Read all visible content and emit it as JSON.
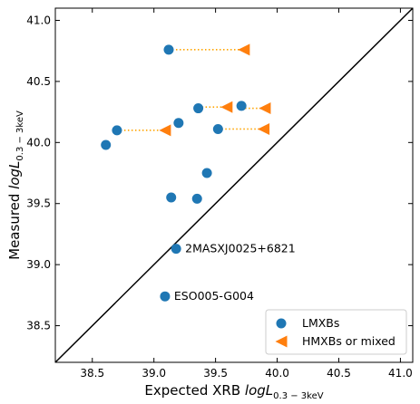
{
  "chart_data": {
    "type": "scatter",
    "xlabel_main": "Expected XRB ",
    "xlabel_italic": "logL",
    "xlabel_sub": "0.3 − 3keV",
    "ylabel_main": "Measured ",
    "ylabel_italic": "logL",
    "ylabel_sub": "0.3 − 3keV",
    "xlim": [
      38.2,
      41.1
    ],
    "ylim": [
      38.2,
      41.1
    ],
    "x_ticks": [
      38.5,
      39.0,
      39.5,
      40.0,
      40.5,
      41.0
    ],
    "y_ticks": [
      38.5,
      39.0,
      39.5,
      40.0,
      40.5,
      41.0
    ],
    "x_tick_labels": [
      "38.5",
      "39.0",
      "39.5",
      "40.0",
      "40.5",
      "41.0"
    ],
    "y_tick_labels": [
      "38.5",
      "39.0",
      "39.5",
      "40.0",
      "40.5",
      "41.0"
    ],
    "one_to_one_line": true,
    "grid": false,
    "legend_position": "bottom-right",
    "series": [
      {
        "name": "LMXBs",
        "marker": "circle",
        "color": "#1f77b4",
        "points": [
          {
            "x": 39.12,
            "y": 40.76
          },
          {
            "x": 39.71,
            "y": 40.3
          },
          {
            "x": 39.36,
            "y": 40.28
          },
          {
            "x": 39.2,
            "y": 40.16
          },
          {
            "x": 39.52,
            "y": 40.11
          },
          {
            "x": 38.7,
            "y": 40.1
          },
          {
            "x": 38.61,
            "y": 39.98
          },
          {
            "x": 39.43,
            "y": 39.75
          },
          {
            "x": 39.14,
            "y": 39.55
          },
          {
            "x": 39.35,
            "y": 39.54
          },
          {
            "x": 39.18,
            "y": 39.13
          },
          {
            "x": 39.09,
            "y": 38.74
          }
        ]
      },
      {
        "name": "HMXBs or mixed",
        "marker": "triangle-left",
        "color": "#ff7f0e",
        "points": [
          {
            "x": 39.73,
            "y": 40.76
          },
          {
            "x": 39.59,
            "y": 40.29
          },
          {
            "x": 39.9,
            "y": 40.28
          },
          {
            "x": 39.09,
            "y": 40.1
          },
          {
            "x": 39.89,
            "y": 40.11
          }
        ]
      }
    ],
    "connectors": [
      {
        "x1": 39.12,
        "x2": 39.73,
        "y": 40.76
      },
      {
        "x1": 39.36,
        "x2": 39.59,
        "y": 40.29
      },
      {
        "x1": 39.71,
        "x2": 39.9,
        "y": 40.28
      },
      {
        "x1": 38.7,
        "x2": 39.09,
        "y": 40.1
      },
      {
        "x1": 39.52,
        "x2": 39.89,
        "y": 40.11
      }
    ],
    "connector_color": "#ffa500",
    "annotations": [
      {
        "text": "2MASXJ0025+6821",
        "x": 39.18,
        "y": 39.13
      },
      {
        "text": "ESO005-G004",
        "x": 39.09,
        "y": 38.74
      }
    ]
  }
}
